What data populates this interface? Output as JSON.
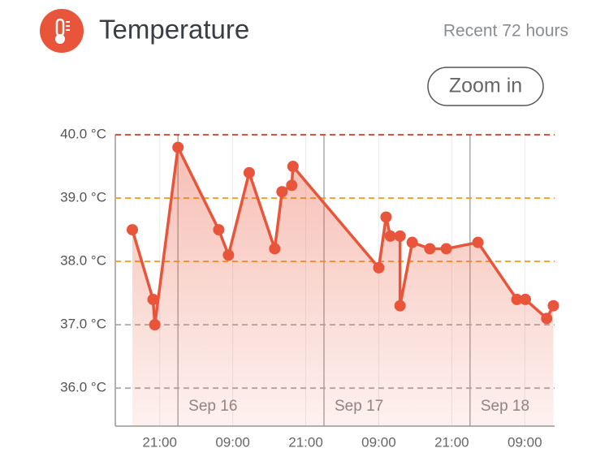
{
  "chart_data": {
    "type": "line",
    "title": "Temperature",
    "subtitle": "Recent 72 hours",
    "x": [
      -7.5,
      -4.1,
      -3.8,
      0,
      6.7,
      8.3,
      11.7,
      15.9,
      17.1,
      18.7,
      18.9,
      33,
      34.2,
      34.9,
      36.5,
      36.5,
      38.5,
      41.4,
      44.1,
      49.3,
      55.7,
      57.1,
      60.6,
      61.7
    ],
    "values": [
      38.5,
      37.4,
      37.0,
      39.8,
      38.5,
      38.1,
      39.4,
      38.2,
      39.1,
      39.2,
      39.5,
      37.9,
      38.7,
      38.4,
      38.4,
      37.3,
      38.3,
      38.2,
      38.2,
      38.3,
      37.4,
      37.4,
      37.1,
      37.3
    ],
    "color": "#e8553a",
    "xlim": [
      -10.3,
      61.9
    ],
    "xticks": [
      {
        "value": -3,
        "label": "21:00"
      },
      {
        "value": 9,
        "label": "09:00"
      },
      {
        "value": 21,
        "label": "21:00"
      },
      {
        "value": 33,
        "label": "09:00"
      },
      {
        "value": 45,
        "label": "21:00"
      },
      {
        "value": 57,
        "label": "09:00"
      }
    ],
    "day_ticks": [
      {
        "value": 0,
        "label": "Sep 16"
      },
      {
        "value": 24,
        "label": "Sep 17"
      },
      {
        "value": 48,
        "label": "Sep 18"
      }
    ],
    "ylim": [
      35.4,
      40.0
    ],
    "yticks": [
      {
        "value": 36,
        "label": "36.0 °C"
      },
      {
        "value": 37,
        "label": "37.0 °C"
      },
      {
        "value": 38,
        "label": "38.0 °C"
      },
      {
        "value": 39,
        "label": "39.0 °C"
      },
      {
        "value": 40,
        "label": "40.0 °C"
      }
    ],
    "ytick_colors": [
      "#aaaaaa",
      "#aaaaaa",
      "#f0a030",
      "#f0a030",
      "#d63a2a"
    ],
    "grid": true
  },
  "controls": {
    "zoom_button": "Zoom in"
  }
}
